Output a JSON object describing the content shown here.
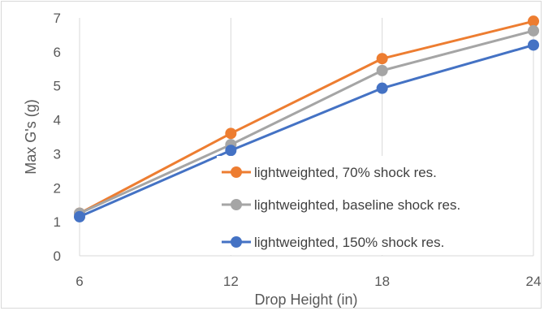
{
  "chart_data": {
    "type": "line",
    "title": "",
    "xlabel": "Drop Height (in)",
    "ylabel": "Max G's (g)",
    "x": [
      6,
      12,
      18,
      24
    ],
    "x_tick_labels": [
      "6",
      "12",
      "18",
      "24"
    ],
    "ylim": [
      0,
      7
    ],
    "y_tick_labels": [
      "0",
      "1",
      "2",
      "3",
      "4",
      "5",
      "6",
      "7"
    ],
    "grid": "vertical",
    "legend_position": "center-right (inside plot)",
    "series": [
      {
        "name": "lightweighted, 70% shock res.",
        "color": "#ED7D31",
        "values": [
          1.25,
          3.6,
          5.8,
          6.9
        ]
      },
      {
        "name": "lightweighted, baseline shock res.",
        "color": "#A5A5A5",
        "values": [
          1.25,
          3.27,
          5.45,
          6.62
        ]
      },
      {
        "name": "lightweighted, 150% shock res.",
        "color": "#4472C4",
        "values": [
          1.15,
          3.1,
          4.93,
          6.2
        ]
      }
    ]
  }
}
